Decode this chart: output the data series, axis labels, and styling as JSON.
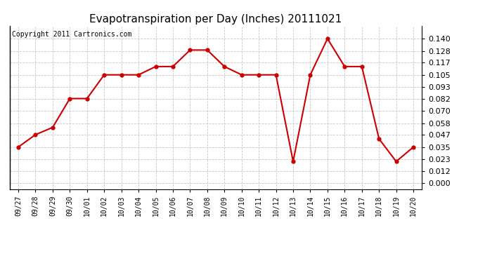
{
  "title": "Evapotranspiration per Day (Inches) 20111021",
  "copyright": "Copyright 2011 Cartronics.com",
  "labels": [
    "09/27",
    "09/28",
    "09/29",
    "09/30",
    "10/01",
    "10/02",
    "10/03",
    "10/04",
    "10/05",
    "10/06",
    "10/07",
    "10/08",
    "10/09",
    "10/10",
    "10/11",
    "10/12",
    "10/13",
    "10/14",
    "10/15",
    "10/16",
    "10/17",
    "10/18",
    "10/19",
    "10/20"
  ],
  "values": [
    0.035,
    0.047,
    0.054,
    0.082,
    0.082,
    0.105,
    0.105,
    0.105,
    0.113,
    0.113,
    0.129,
    0.129,
    0.113,
    0.105,
    0.105,
    0.105,
    0.021,
    0.105,
    0.14,
    0.113,
    0.113,
    0.043,
    0.021,
    0.035
  ],
  "line_color": "#cc0000",
  "marker_color": "#cc0000",
  "bg_color": "#ffffff",
  "grid_color": "#c8c8c8",
  "yticks": [
    0.0,
    0.012,
    0.023,
    0.035,
    0.047,
    0.058,
    0.07,
    0.082,
    0.093,
    0.105,
    0.117,
    0.128,
    0.14
  ],
  "ylim": [
    -0.006,
    0.152
  ],
  "title_fontsize": 11,
  "copyright_fontsize": 7,
  "tick_fontsize": 8,
  "xtick_fontsize": 7
}
